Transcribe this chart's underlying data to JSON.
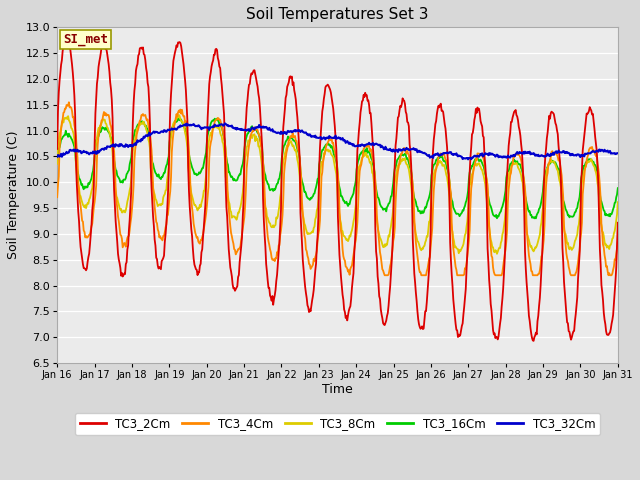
{
  "title": "Soil Temperatures Set 3",
  "xlabel": "Time",
  "ylabel": "Soil Temperature (C)",
  "ylim": [
    6.5,
    13.0
  ],
  "yticks": [
    6.5,
    7.0,
    7.5,
    8.0,
    8.5,
    9.0,
    9.5,
    10.0,
    10.5,
    11.0,
    11.5,
    12.0,
    12.5,
    13.0
  ],
  "xtick_labels": [
    "Jan 16",
    "Jan 17",
    "Jan 18",
    "Jan 19",
    "Jan 20",
    "Jan 21",
    "Jan 22",
    "Jan 23",
    "Jan 24",
    "Jan 25",
    "Jan 26",
    "Jan 27",
    "Jan 28",
    "Jan 29",
    "Jan 30",
    "Jan 31"
  ],
  "fig_bg_color": "#d8d8d8",
  "plot_bg_color": "#ebebeb",
  "line_colors": {
    "TC3_2Cm": "#dd0000",
    "TC3_4Cm": "#ff8800",
    "TC3_8Cm": "#ddcc00",
    "TC3_16Cm": "#00cc00",
    "TC3_32Cm": "#0000cc"
  },
  "annotation_text": "SI_met",
  "annotation_bg": "#ffffcc",
  "annotation_border": "#999900",
  "annotation_text_color": "#880000",
  "grid_color": "#ffffff",
  "spine_color": "#aaaaaa"
}
